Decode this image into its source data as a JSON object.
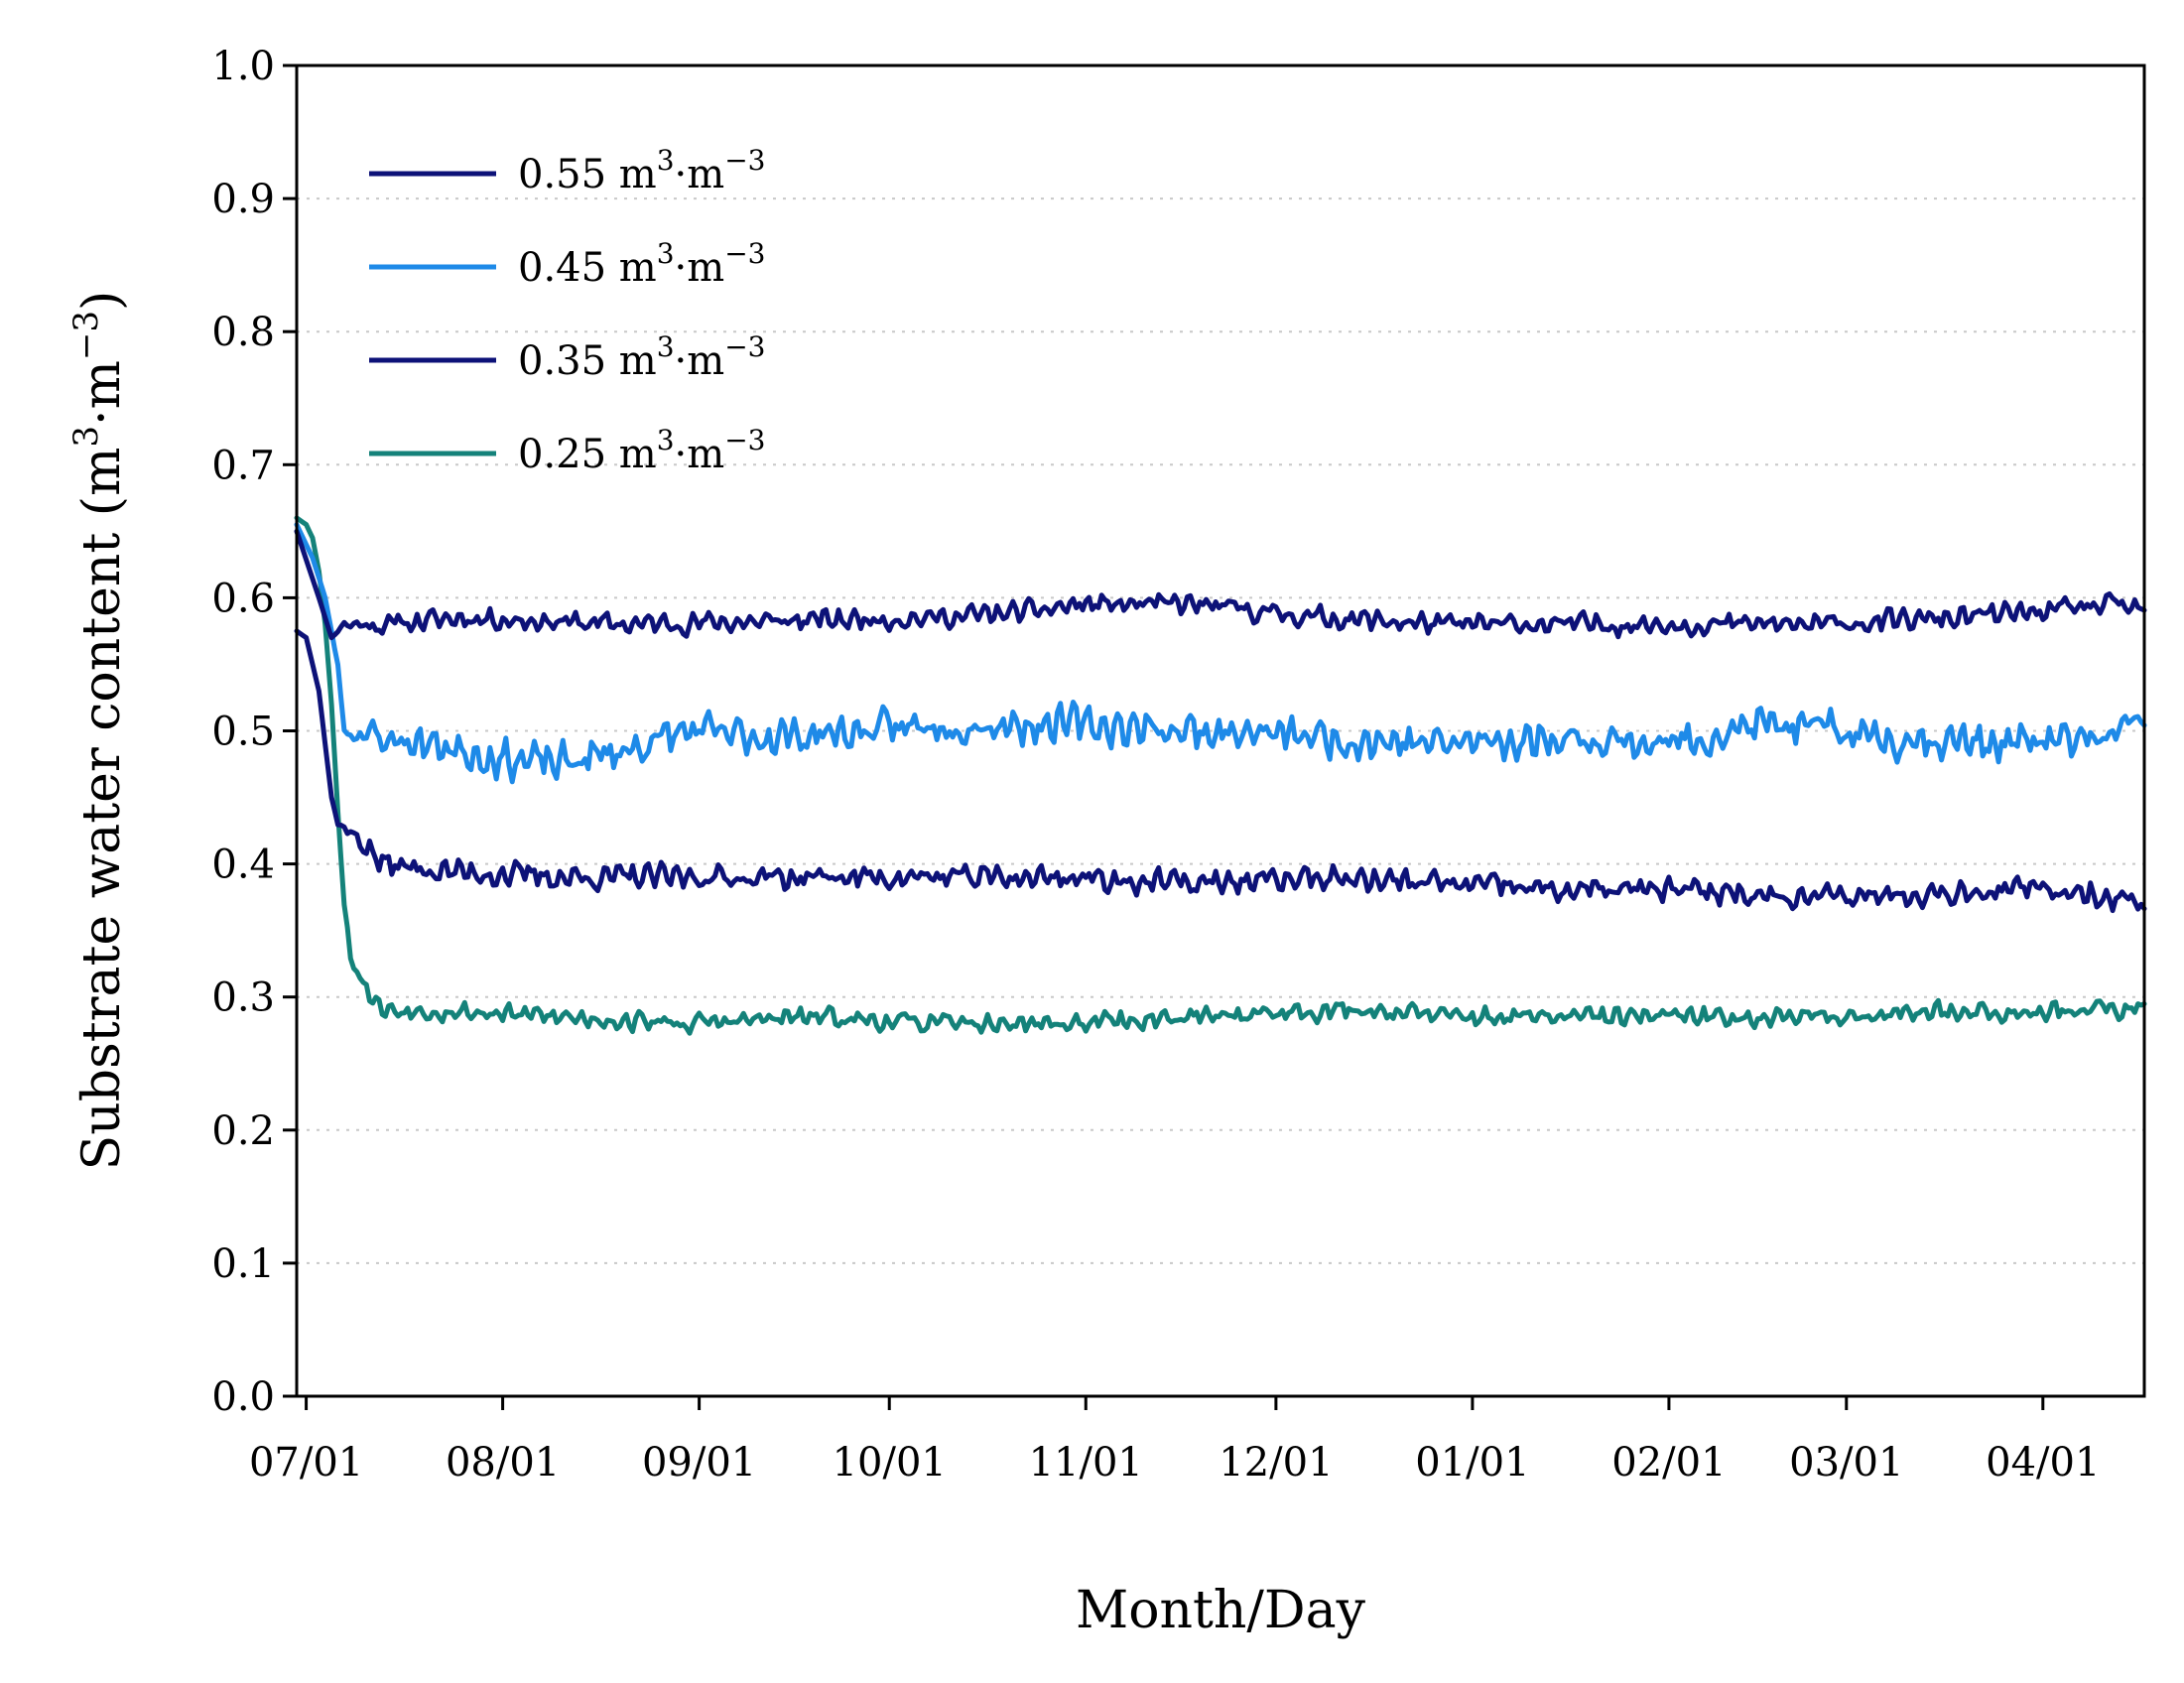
{
  "chart_data": {
    "type": "line",
    "title": "",
    "xlabel": "Month/Day",
    "ylabel": "Substrate water content (m3·m−3)",
    "ylabel_parts": {
      "prefix": "Substrate water content (m",
      "exp1": "3",
      "mid": "·m",
      "exp2": "−3",
      "suffix": ")"
    },
    "ylim": [
      0.0,
      1.0
    ],
    "yticks": [
      "0.0",
      "0.1",
      "0.2",
      "0.3",
      "0.4",
      "0.5",
      "0.6",
      "0.7",
      "0.8",
      "0.9",
      "1.0"
    ],
    "y_grid": true,
    "x_unit": "days since 07/01",
    "xlim": [
      -1.5,
      290
    ],
    "xticks": [
      {
        "label": "07/01",
        "day": 0
      },
      {
        "label": "08/01",
        "day": 31
      },
      {
        "label": "09/01",
        "day": 62
      },
      {
        "label": "10/01",
        "day": 92
      },
      {
        "label": "11/01",
        "day": 123
      },
      {
        "label": "12/01",
        "day": 153
      },
      {
        "label": "01/01",
        "day": 184
      },
      {
        "label": "02/01",
        "day": 215
      },
      {
        "label": "03/01",
        "day": 243
      },
      {
        "label": "04/01",
        "day": 274
      }
    ],
    "legend_position": "top-left",
    "series": [
      {
        "name": "0.55 m3·m−3",
        "name_parts": {
          "value": "0.55 m",
          "exp1": "3",
          "mid": "·m",
          "exp2": "−3"
        },
        "color": "#0d1278",
        "anchors": [
          [
            -1.5,
            0.65
          ],
          [
            2,
            0.6
          ],
          [
            4,
            0.57
          ],
          [
            6,
            0.58
          ],
          [
            12,
            0.58
          ],
          [
            25,
            0.585
          ],
          [
            50,
            0.58
          ],
          [
            80,
            0.583
          ],
          [
            100,
            0.585
          ],
          [
            115,
            0.59
          ],
          [
            122,
            0.595
          ],
          [
            140,
            0.595
          ],
          [
            160,
            0.585
          ],
          [
            180,
            0.58
          ],
          [
            200,
            0.58
          ],
          [
            220,
            0.58
          ],
          [
            240,
            0.58
          ],
          [
            260,
            0.585
          ],
          [
            275,
            0.59
          ],
          [
            285,
            0.595
          ],
          [
            290,
            0.59
          ]
        ],
        "noise": 0.011,
        "seed": 11
      },
      {
        "name": "0.45 m3·m−3",
        "name_parts": {
          "value": "0.45 m",
          "exp1": "3",
          "mid": "·m",
          "exp2": "−3"
        },
        "color": "#1e8ae8",
        "anchors": [
          [
            -1.5,
            0.655
          ],
          [
            1,
            0.63
          ],
          [
            3,
            0.6
          ],
          [
            5,
            0.55
          ],
          [
            6,
            0.5
          ],
          [
            10,
            0.495
          ],
          [
            20,
            0.49
          ],
          [
            30,
            0.48
          ],
          [
            40,
            0.475
          ],
          [
            50,
            0.485
          ],
          [
            60,
            0.5
          ],
          [
            70,
            0.495
          ],
          [
            90,
            0.5
          ],
          [
            100,
            0.505
          ],
          [
            120,
            0.505
          ],
          [
            140,
            0.5
          ],
          [
            160,
            0.495
          ],
          [
            180,
            0.49
          ],
          [
            200,
            0.495
          ],
          [
            215,
            0.49
          ],
          [
            230,
            0.505
          ],
          [
            250,
            0.495
          ],
          [
            270,
            0.49
          ],
          [
            285,
            0.495
          ],
          [
            290,
            0.51
          ]
        ],
        "noise": 0.02,
        "seed": 23
      },
      {
        "name": "0.35 m3·m−3",
        "name_parts": {
          "value": "0.35 m",
          "exp1": "3",
          "mid": "·m",
          "exp2": "−3"
        },
        "color": "#0d1278",
        "anchors": [
          [
            -1.5,
            0.575
          ],
          [
            0,
            0.57
          ],
          [
            2,
            0.53
          ],
          [
            3,
            0.49
          ],
          [
            4,
            0.45
          ],
          [
            5,
            0.43
          ],
          [
            8,
            0.42
          ],
          [
            12,
            0.4
          ],
          [
            20,
            0.395
          ],
          [
            40,
            0.39
          ],
          [
            60,
            0.39
          ],
          [
            80,
            0.39
          ],
          [
            100,
            0.39
          ],
          [
            120,
            0.39
          ],
          [
            140,
            0.385
          ],
          [
            160,
            0.39
          ],
          [
            180,
            0.385
          ],
          [
            200,
            0.38
          ],
          [
            220,
            0.38
          ],
          [
            240,
            0.375
          ],
          [
            260,
            0.38
          ],
          [
            280,
            0.38
          ],
          [
            290,
            0.37
          ]
        ],
        "noise": 0.013,
        "seed": 37
      },
      {
        "name": "0.25 m3·m−3",
        "name_parts": {
          "value": "0.25 m",
          "exp1": "3",
          "mid": "·m",
          "exp2": "−3"
        },
        "color": "#14827a",
        "anchors": [
          [
            -1.5,
            0.66
          ],
          [
            0,
            0.655
          ],
          [
            1,
            0.645
          ],
          [
            2,
            0.62
          ],
          [
            3,
            0.58
          ],
          [
            4,
            0.52
          ],
          [
            5,
            0.44
          ],
          [
            6,
            0.37
          ],
          [
            7,
            0.33
          ],
          [
            9,
            0.31
          ],
          [
            12,
            0.29
          ],
          [
            20,
            0.29
          ],
          [
            40,
            0.285
          ],
          [
            60,
            0.28
          ],
          [
            80,
            0.285
          ],
          [
            100,
            0.28
          ],
          [
            120,
            0.28
          ],
          [
            140,
            0.285
          ],
          [
            160,
            0.29
          ],
          [
            170,
            0.29
          ],
          [
            180,
            0.285
          ],
          [
            200,
            0.285
          ],
          [
            220,
            0.285
          ],
          [
            240,
            0.285
          ],
          [
            260,
            0.29
          ],
          [
            280,
            0.29
          ],
          [
            290,
            0.29
          ]
        ],
        "noise": 0.01,
        "seed": 53
      }
    ]
  }
}
